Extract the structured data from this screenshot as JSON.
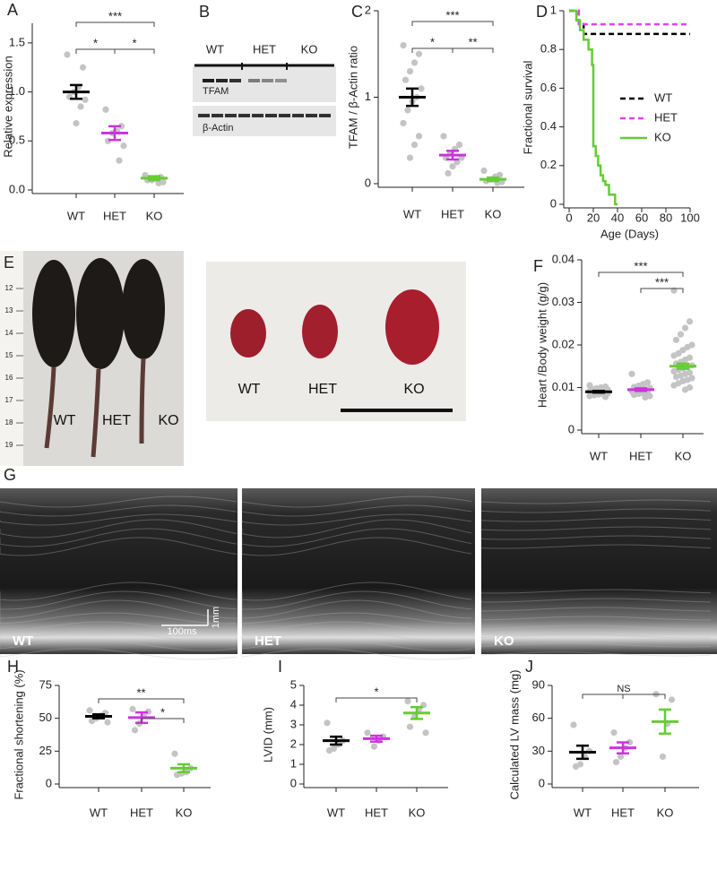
{
  "chart_data": [
    {
      "type": "dot",
      "panel": "A",
      "ylabel": "Relative expression",
      "categories": [
        "WT",
        "HET",
        "KO"
      ],
      "colors": [
        "#000000",
        "#cc33dd",
        "#66cc33"
      ],
      "means": [
        1.0,
        0.58,
        0.12
      ],
      "sem": [
        0.07,
        0.07,
        0.02
      ],
      "points": [
        [
          1.38,
          1.25,
          1.05,
          1.0,
          0.95,
          0.92,
          0.85,
          0.68
        ],
        [
          0.82,
          0.65,
          0.6,
          0.58,
          0.5,
          0.45,
          0.3
        ],
        [
          0.15,
          0.13,
          0.12,
          0.1,
          0.1,
          0.08,
          0.07
        ]
      ],
      "ylim": [
        0,
        1.7
      ],
      "yticks": [
        {
          "value": 0,
          "label": "0.0"
        },
        0.5,
        {
          "value": 1,
          "label": "1.0"
        },
        1.5
      ],
      "annotations": [
        {
          "text": "***",
          "between": [
            "WT",
            "KO"
          ]
        },
        {
          "text": "*",
          "between": [
            "WT",
            "HET"
          ]
        },
        {
          "text": "*",
          "between": [
            "HET",
            "KO"
          ]
        }
      ]
    },
    {
      "type": "dot",
      "panel": "C",
      "ylabel": "TFAM / β-Actin ratio",
      "categories": [
        "WT",
        "HET",
        "KO"
      ],
      "colors": [
        "#000000",
        "#cc33dd",
        "#66cc33"
      ],
      "means": [
        1.0,
        0.33,
        0.05
      ],
      "sem": [
        0.1,
        0.05,
        0.02
      ],
      "points": [
        [
          1.6,
          1.5,
          1.4,
          1.3,
          1.2,
          1.1,
          1.0,
          0.95,
          0.85,
          0.7,
          0.55,
          0.45,
          0.3
        ],
        [
          0.55,
          0.45,
          0.4,
          0.35,
          0.3,
          0.3,
          0.25,
          0.2,
          0.12
        ],
        [
          0.15,
          0.1,
          0.08,
          0.05,
          0.03,
          0.02,
          0.01
        ]
      ],
      "ylim": [
        0,
        2
      ],
      "yticks": [
        0,
        1,
        2
      ],
      "annotations": [
        {
          "text": "***",
          "between": [
            "WT",
            "KO"
          ]
        },
        {
          "text": "*",
          "between": [
            "WT",
            "HET"
          ]
        },
        {
          "text": "**",
          "between": [
            "HET",
            "KO"
          ]
        }
      ]
    },
    {
      "type": "line",
      "panel": "D",
      "ylabel": "Fractional survival",
      "xlabel": "Age (Days)",
      "legend": "center-right",
      "series": [
        {
          "name": "WT",
          "color": "#000000",
          "dash": "dashed",
          "x": [
            0,
            8,
            8,
            12,
            12,
            100
          ],
          "values": [
            1,
            1,
            0.94,
            0.94,
            0.88,
            0.88
          ]
        },
        {
          "name": "HET",
          "color": "#dd44ee",
          "dash": "dashed",
          "x": [
            0,
            8,
            8,
            100
          ],
          "values": [
            1,
            1,
            0.93,
            0.93
          ]
        },
        {
          "name": "KO",
          "color": "#66cc33",
          "dash": "solid",
          "x": [
            0,
            6,
            6,
            9,
            9,
            12,
            12,
            16,
            16,
            19,
            19,
            20,
            20,
            22,
            22,
            24,
            24,
            26,
            26,
            28,
            28,
            30,
            30,
            33,
            33,
            38,
            38,
            40
          ],
          "values": [
            1,
            1,
            0.95,
            0.95,
            0.9,
            0.9,
            0.85,
            0.85,
            0.8,
            0.8,
            0.72,
            0.72,
            0.3,
            0.3,
            0.25,
            0.25,
            0.2,
            0.2,
            0.15,
            0.15,
            0.12,
            0.12,
            0.1,
            0.1,
            0.05,
            0.05,
            0,
            0
          ]
        }
      ],
      "xlim": [
        0,
        100
      ],
      "xticks": [
        0,
        20,
        40,
        60,
        80,
        100
      ],
      "ylim": [
        0,
        1
      ],
      "yticks": [
        0,
        0.2,
        0.4,
        0.6,
        0.8,
        1
      ]
    },
    {
      "type": "dot",
      "panel": "F",
      "ylabel": "Heart /Body weight (g/g)",
      "categories": [
        "WT",
        "HET",
        "KO"
      ],
      "colors": [
        "#000000",
        "#cc33dd",
        "#66cc33"
      ],
      "means": [
        0.009,
        0.0095,
        0.015
      ],
      "sem": [
        0.0002,
        0.0003,
        0.0006
      ],
      "points": [
        [
          0.0105,
          0.0102,
          0.01,
          0.0098,
          0.0096,
          0.0095,
          0.0094,
          0.0093,
          0.0092,
          0.0091,
          0.009,
          0.0089,
          0.0088,
          0.0087,
          0.0086,
          0.0085,
          0.0084,
          0.0082,
          0.008,
          0.0078
        ],
        [
          0.0132,
          0.0112,
          0.0108,
          0.0104,
          0.0101,
          0.0099,
          0.0097,
          0.0095,
          0.0093,
          0.0091,
          0.0089,
          0.0087,
          0.0085,
          0.0083,
          0.008,
          0.0077
        ],
        [
          0.0328,
          0.0255,
          0.024,
          0.0225,
          0.0212,
          0.02,
          0.0195,
          0.0188,
          0.018,
          0.0175,
          0.017,
          0.0165,
          0.016,
          0.0156,
          0.0152,
          0.0148,
          0.0145,
          0.0142,
          0.0138,
          0.0135,
          0.0132,
          0.0128,
          0.0125,
          0.0122,
          0.0118,
          0.0115,
          0.011,
          0.0105,
          0.01,
          0.0095
        ]
      ],
      "ylim": [
        0,
        0.04
      ],
      "yticks": [
        0,
        0.01,
        0.02,
        0.03,
        0.04
      ],
      "annotations": [
        {
          "text": "***",
          "between": [
            "WT",
            "KO"
          ]
        },
        {
          "text": "***",
          "between": [
            "HET",
            "KO"
          ]
        }
      ]
    },
    {
      "type": "dot",
      "panel": "H",
      "ylabel": "Fractional shortening (%)",
      "categories": [
        "WT",
        "HET",
        "KO"
      ],
      "colors": [
        "#000000",
        "#cc33dd",
        "#66cc33"
      ],
      "means": [
        51.5,
        50.5,
        12
      ],
      "sem": [
        1.5,
        4,
        3
      ],
      "points": [
        [
          56,
          54,
          52,
          50,
          48,
          47
        ],
        [
          57,
          55,
          52,
          46,
          41
        ],
        [
          23,
          12,
          9,
          8,
          7
        ]
      ],
      "ylim": [
        0,
        75
      ],
      "yticks": [
        0,
        25,
        50,
        75
      ],
      "annotations": [
        {
          "text": "**",
          "between": [
            "WT",
            "KO"
          ]
        },
        {
          "text": "*",
          "between": [
            "HET",
            "KO"
          ]
        }
      ]
    },
    {
      "type": "dot",
      "panel": "I",
      "ylabel": "LVID (mm)",
      "categories": [
        "WT",
        "HET",
        "KO"
      ],
      "colors": [
        "#000000",
        "#cc33dd",
        "#66cc33"
      ],
      "means": [
        2.2,
        2.3,
        3.6
      ],
      "sem": [
        0.2,
        0.15,
        0.3
      ],
      "points": [
        [
          3.1,
          2.2,
          2.0,
          1.8,
          1.7
        ],
        [
          2.6,
          2.4,
          2.2,
          1.9
        ],
        [
          4.2,
          4.0,
          3.8,
          3.4,
          2.9,
          2.6
        ]
      ],
      "ylim": [
        0,
        5
      ],
      "yticks": [
        0,
        1,
        2,
        3,
        4,
        5
      ],
      "annotations": [
        {
          "text": "*",
          "between": [
            "WT",
            "KO"
          ]
        }
      ]
    },
    {
      "type": "dot",
      "panel": "J",
      "ylabel": "Calculated LV mass (mg)",
      "categories": [
        "WT",
        "HET",
        "KO"
      ],
      "colors": [
        "#000000",
        "#cc33dd",
        "#66cc33"
      ],
      "means": [
        29,
        33,
        57
      ],
      "sem": [
        6,
        5,
        11
      ],
      "points": [
        [
          54,
          30,
          25,
          18,
          16
        ],
        [
          47,
          38,
          33,
          25,
          20
        ],
        [
          82,
          77,
          55,
          25
        ]
      ],
      "ylim": [
        0,
        90
      ],
      "yticks": [
        0,
        30,
        60,
        90
      ],
      "annotations": [
        {
          "text": "NS",
          "between": [
            "WT",
            "HET",
            "KO"
          ]
        }
      ]
    }
  ],
  "blot": {
    "panel": "B",
    "lanes": [
      "WT",
      "HET",
      "KO"
    ],
    "bands": [
      "TFAM",
      "β-Actin"
    ]
  },
  "photos": {
    "panel": "E",
    "mice": [
      "WT",
      "HET",
      "KO"
    ],
    "hearts": [
      "WT",
      "HET",
      "KO"
    ],
    "ruler": [
      "12",
      "13",
      "14",
      "15",
      "16",
      "17",
      "18",
      "19"
    ]
  },
  "echo": {
    "panel": "G",
    "views": [
      "WT",
      "HET",
      "KO"
    ],
    "time_scale": "100ms",
    "depth_scale": "1mm"
  }
}
